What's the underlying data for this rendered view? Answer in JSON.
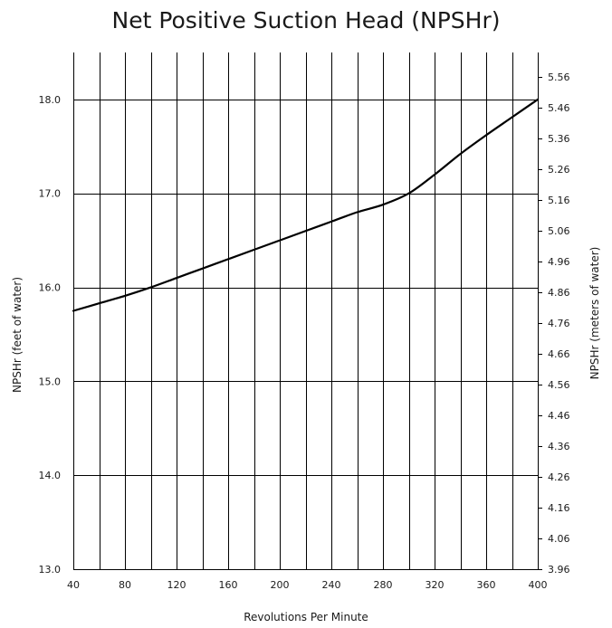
{
  "chart_data": {
    "type": "line",
    "title": "Net Positive Suction Head (NPSHr)",
    "xlabel": "Revolutions Per Minute",
    "ylabel": "NPSHr (feet of water)",
    "y2label": "NPSHr (meters of water)",
    "xlim": [
      40,
      400
    ],
    "ylim": [
      13.0,
      18.5
    ],
    "y2lim": [
      3.96,
      5.64
    ],
    "x_tick_labels": [
      "40",
      "80",
      "120",
      "160",
      "200",
      "240",
      "280",
      "320",
      "360",
      "400"
    ],
    "x_ticks": [
      40,
      80,
      120,
      160,
      200,
      240,
      280,
      320,
      360,
      400
    ],
    "x_gridlines": [
      60,
      80,
      100,
      120,
      140,
      160,
      180,
      200,
      220,
      240,
      260,
      280,
      300,
      320,
      340,
      360,
      380,
      400
    ],
    "y_tick_labels": [
      "13.0",
      "14.0",
      "15.0",
      "16.0",
      "17.0",
      "18.0"
    ],
    "y_ticks": [
      13.0,
      14.0,
      15.0,
      16.0,
      17.0,
      18.0
    ],
    "y2_tick_labels": [
      "3.96",
      "4.06",
      "4.16",
      "4.26",
      "4.36",
      "4.46",
      "4.56",
      "4.66",
      "4.76",
      "4.86",
      "4.96",
      "5.06",
      "5.16",
      "5.26",
      "5.36",
      "5.46",
      "5.56"
    ],
    "y2_ticks": [
      3.96,
      4.06,
      4.16,
      4.26,
      4.36,
      4.46,
      4.56,
      4.66,
      4.76,
      4.86,
      4.96,
      5.06,
      5.16,
      5.26,
      5.36,
      5.46,
      5.56
    ],
    "grid": true,
    "legend": "none",
    "line_color": "#000000",
    "series": [
      {
        "x": [
          40,
          60,
          80,
          100,
          120,
          140,
          160,
          180,
          200,
          220,
          240,
          260,
          280,
          300,
          320,
          340,
          360,
          380,
          400
        ],
        "y": [
          15.75,
          15.83,
          15.91,
          16.0,
          16.1,
          16.2,
          16.3,
          16.4,
          16.5,
          16.6,
          16.7,
          16.8,
          16.88,
          17.0,
          17.2,
          17.42,
          17.62,
          17.81,
          18.0
        ]
      }
    ]
  }
}
